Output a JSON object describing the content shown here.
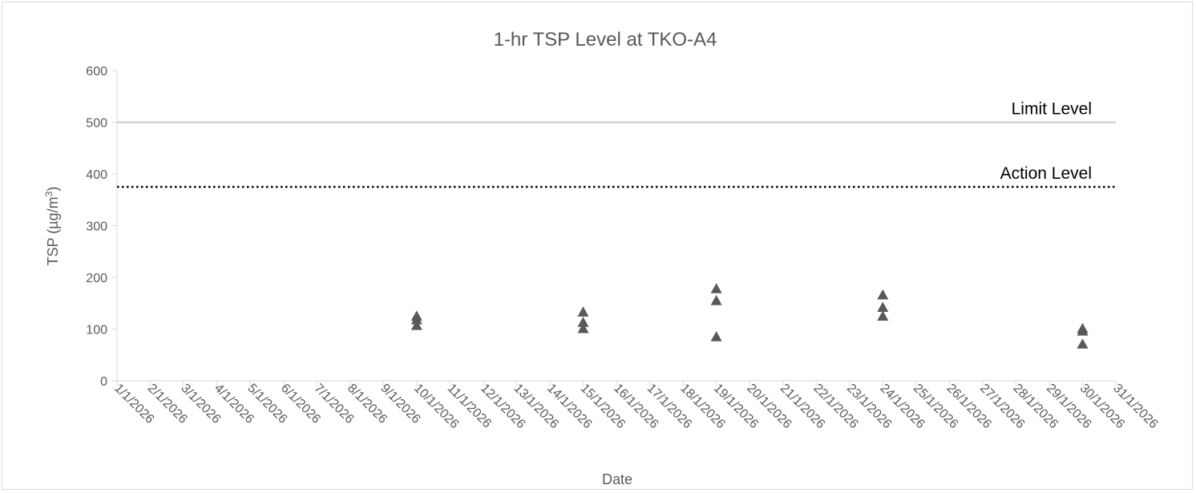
{
  "chart_data": {
    "type": "scatter",
    "title": "1-hr TSP Level at TKO-A4",
    "xlabel": "Date",
    "ylabel_main": "TSP (µg/m",
    "ylabel_sup": "3",
    "ylabel_close": ")",
    "x_ticks": [
      "1/1/2026",
      "2/1/2026",
      "3/1/2026",
      "4/1/2026",
      "5/1/2026",
      "6/1/2026",
      "7/1/2026",
      "8/1/2026",
      "9/1/2026",
      "10/1/2026",
      "11/1/2026",
      "12/1/2026",
      "13/1/2026",
      "14/1/2026",
      "15/1/2026",
      "16/1/2026",
      "17/1/2026",
      "18/1/2026",
      "19/1/2026",
      "20/1/2026",
      "21/1/2026",
      "22/1/2026",
      "23/1/2026",
      "24/1/2026",
      "25/1/2026",
      "26/1/2026",
      "27/1/2026",
      "28/1/2026",
      "29/1/2026",
      "30/1/2026",
      "31/1/2026"
    ],
    "y_ticks": [
      "0",
      "100",
      "200",
      "300",
      "400",
      "500",
      "600"
    ],
    "ylim": [
      0,
      600
    ],
    "xlim": [
      "1/1/2026",
      "31/1/2026"
    ],
    "grid": false,
    "marker": "triangle",
    "marker_color": "#595959",
    "points": [
      {
        "x": "10/1/2026",
        "y": 125
      },
      {
        "x": "10/1/2026",
        "y": 118
      },
      {
        "x": "10/1/2026",
        "y": 107
      },
      {
        "x": "15/1/2026",
        "y": 133
      },
      {
        "x": "15/1/2026",
        "y": 113
      },
      {
        "x": "15/1/2026",
        "y": 101
      },
      {
        "x": "19/1/2026",
        "y": 178
      },
      {
        "x": "19/1/2026",
        "y": 155
      },
      {
        "x": "19/1/2026",
        "y": 85
      },
      {
        "x": "24/1/2026",
        "y": 166
      },
      {
        "x": "24/1/2026",
        "y": 142
      },
      {
        "x": "24/1/2026",
        "y": 125
      },
      {
        "x": "30/1/2026",
        "y": 101
      },
      {
        "x": "30/1/2026",
        "y": 96
      },
      {
        "x": "30/1/2026",
        "y": 71
      }
    ],
    "reference_lines": [
      {
        "name": "Limit Level",
        "value": 500,
        "style": "solid",
        "color": "#d9d9d9"
      },
      {
        "name": "Action Level",
        "value": 375,
        "style": "dotted",
        "color": "#000000"
      }
    ]
  }
}
